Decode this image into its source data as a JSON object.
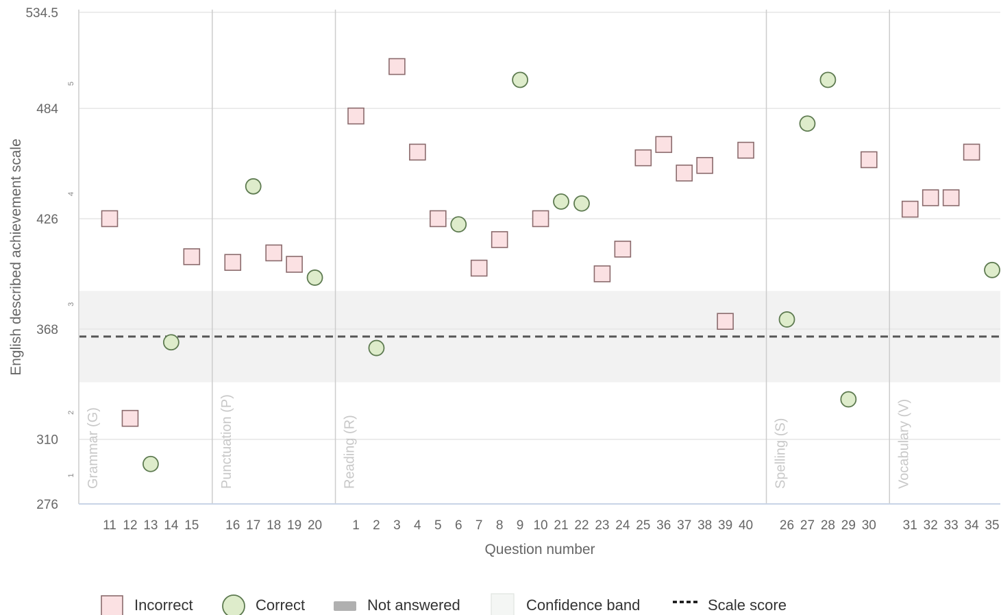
{
  "chart_data": {
    "type": "scatter",
    "xlabel": "Question number",
    "ylabel": "English described achievement scale",
    "ylim": [
      276,
      534.5
    ],
    "y_ticks": [
      276,
      310,
      368,
      426,
      484,
      534.5
    ],
    "y_tick_labels": [
      "276",
      "310",
      "368",
      "426",
      "484",
      "534.5"
    ],
    "band_labels": [
      {
        "label": "1",
        "y": 291
      },
      {
        "label": "2",
        "y": 324
      },
      {
        "label": "3",
        "y": 381
      },
      {
        "label": "4",
        "y": 439
      },
      {
        "label": "5",
        "y": 497
      }
    ],
    "confidence_band": [
      340,
      388
    ],
    "scale_score": 364,
    "sections": [
      {
        "label": "Grammar (G)",
        "questions": [
          {
            "q": "11",
            "result": "Incorrect",
            "y": 426
          },
          {
            "q": "12",
            "result": "Incorrect",
            "y": 321
          },
          {
            "q": "13",
            "result": "Correct",
            "y": 297
          },
          {
            "q": "14",
            "result": "Correct",
            "y": 361
          },
          {
            "q": "15",
            "result": "Incorrect",
            "y": 406
          }
        ]
      },
      {
        "label": "Punctuation (P)",
        "questions": [
          {
            "q": "16",
            "result": "Incorrect",
            "y": 403
          },
          {
            "q": "17",
            "result": "Correct",
            "y": 443
          },
          {
            "q": "18",
            "result": "Incorrect",
            "y": 408
          },
          {
            "q": "19",
            "result": "Incorrect",
            "y": 402
          },
          {
            "q": "20",
            "result": "Correct",
            "y": 395
          }
        ]
      },
      {
        "label": "Reading (R)",
        "questions": [
          {
            "q": "1",
            "result": "Incorrect",
            "y": 480
          },
          {
            "q": "2",
            "result": "Correct",
            "y": 358
          },
          {
            "q": "3",
            "result": "Incorrect",
            "y": 506
          },
          {
            "q": "4",
            "result": "Incorrect",
            "y": 461
          },
          {
            "q": "5",
            "result": "Incorrect",
            "y": 426
          },
          {
            "q": "6",
            "result": "Correct",
            "y": 423
          },
          {
            "q": "7",
            "result": "Incorrect",
            "y": 400
          },
          {
            "q": "8",
            "result": "Incorrect",
            "y": 415
          },
          {
            "q": "9",
            "result": "Correct",
            "y": 499
          },
          {
            "q": "10",
            "result": "Incorrect",
            "y": 426
          },
          {
            "q": "21",
            "result": "Correct",
            "y": 435
          },
          {
            "q": "22",
            "result": "Correct",
            "y": 434
          },
          {
            "q": "23",
            "result": "Incorrect",
            "y": 397
          },
          {
            "q": "24",
            "result": "Incorrect",
            "y": 410
          },
          {
            "q": "25",
            "result": "Incorrect",
            "y": 458
          },
          {
            "q": "36",
            "result": "Incorrect",
            "y": 465
          },
          {
            "q": "37",
            "result": "Incorrect",
            "y": 450
          },
          {
            "q": "38",
            "result": "Incorrect",
            "y": 454
          },
          {
            "q": "39",
            "result": "Incorrect",
            "y": 372
          },
          {
            "q": "40",
            "result": "Incorrect",
            "y": 462
          }
        ]
      },
      {
        "label": "Spelling (S)",
        "questions": [
          {
            "q": "26",
            "result": "Correct",
            "y": 373
          },
          {
            "q": "27",
            "result": "Correct",
            "y": 476
          },
          {
            "q": "28",
            "result": "Correct",
            "y": 499
          },
          {
            "q": "29",
            "result": "Correct",
            "y": 331
          },
          {
            "q": "30",
            "result": "Incorrect",
            "y": 457
          }
        ]
      },
      {
        "label": "Vocabulary (V)",
        "questions": [
          {
            "q": "31",
            "result": "Incorrect",
            "y": 431
          },
          {
            "q": "32",
            "result": "Incorrect",
            "y": 437
          },
          {
            "q": "33",
            "result": "Incorrect",
            "y": 437
          },
          {
            "q": "34",
            "result": "Incorrect",
            "y": 461
          },
          {
            "q": "35",
            "result": "Correct",
            "y": 399
          }
        ]
      }
    ],
    "legend": [
      {
        "key": "incorrect",
        "label": "Incorrect"
      },
      {
        "key": "correct",
        "label": "Correct"
      },
      {
        "key": "not_answered",
        "label": "Not answered"
      },
      {
        "key": "confidence_band",
        "label": "Confidence band"
      },
      {
        "key": "scale_score",
        "label": "Scale score"
      }
    ],
    "colors": {
      "incorrect_fill": "#fbe1e3",
      "incorrect_stroke": "#8a6a6c",
      "correct_fill": "#deeccb",
      "correct_stroke": "#5d7a50",
      "not_answered": "#b0b0b0",
      "confidence_band": "#f2f2f2",
      "scale_score": "#555555",
      "gridline": "#e6e6e6",
      "separator": "#cccccc"
    }
  }
}
